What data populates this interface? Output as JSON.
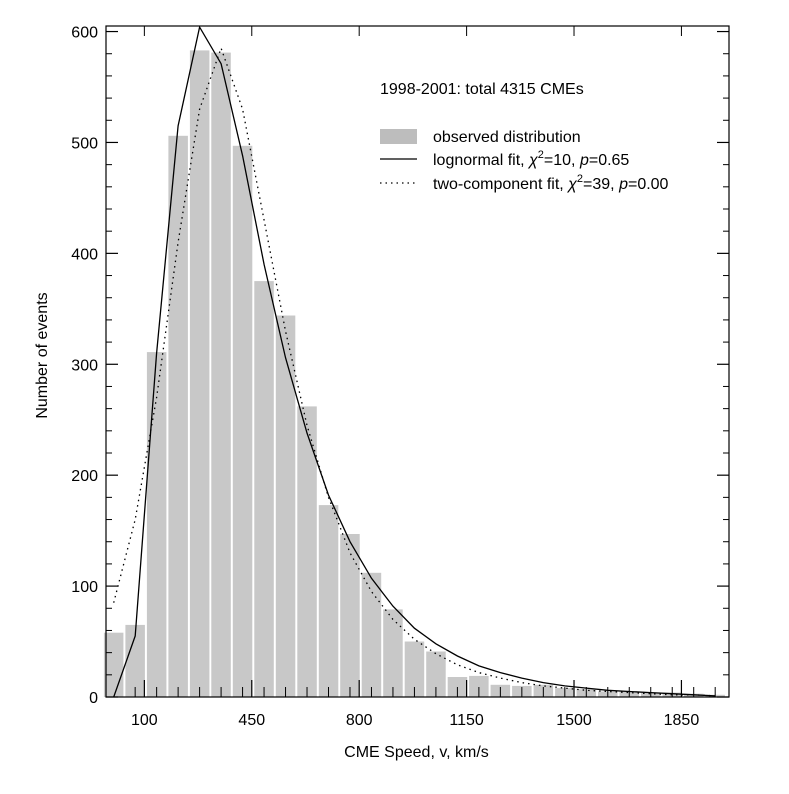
{
  "chart_data": {
    "type": "bar",
    "title": "",
    "xlabel": "CME Speed, v, km/s",
    "ylabel": "Number of events",
    "xlim": [
      -25,
      2005
    ],
    "ylim": [
      0,
      605
    ],
    "x_ticks": [
      100,
      450,
      800,
      1150,
      1500,
      1850
    ],
    "y_ticks": [
      0,
      100,
      200,
      300,
      400,
      500,
      600
    ],
    "grid": false,
    "annotation": "1998-2001: total 4315 CMEs",
    "legend_position": "top-right",
    "legend": [
      {
        "key": "observed",
        "text": "observed distribution"
      },
      {
        "key": "lognormal",
        "pre": "lognormal fit, ",
        "chi_sym": "χ",
        "chi_sup": "2",
        "chi_val": "=10, ",
        "p_sym": "p",
        "p_val": "=0.65"
      },
      {
        "key": "two",
        "pre": "two-component fit, ",
        "chi_sym": "χ",
        "chi_sup": "2",
        "chi_val": "=39, ",
        "p_sym": "p",
        "p_val": "=0.00"
      }
    ],
    "bin_width": 70,
    "bins": {
      "name": "observed distribution",
      "x": [
        0,
        70,
        140,
        210,
        280,
        350,
        420,
        490,
        560,
        630,
        700,
        770,
        840,
        910,
        980,
        1050,
        1120,
        1190,
        1260,
        1330,
        1400,
        1470,
        1540,
        1610,
        1680,
        1750,
        1820,
        1890,
        1960
      ],
      "values": [
        58,
        65,
        311,
        506,
        583,
        581,
        497,
        375,
        344,
        262,
        173,
        147,
        112,
        79,
        50,
        41,
        18,
        19,
        11,
        10,
        11,
        8,
        7,
        5,
        5,
        4,
        4,
        3,
        2
      ]
    },
    "series": [
      {
        "name": "lognormal fit",
        "style": "solid",
        "x": [
          0,
          70,
          140,
          210,
          280,
          350,
          420,
          490,
          560,
          630,
          700,
          770,
          840,
          910,
          980,
          1050,
          1120,
          1190,
          1260,
          1330,
          1400,
          1470,
          1540,
          1610,
          1680,
          1750,
          1820,
          1890,
          1960
        ],
        "values": [
          0,
          55,
          310,
          515,
          604,
          571,
          488,
          390,
          306,
          238,
          182,
          140,
          107,
          82,
          62,
          48,
          37,
          28,
          22,
          17,
          13,
          10,
          8,
          6,
          5,
          4,
          3,
          2,
          1
        ]
      },
      {
        "name": "two-component fit",
        "style": "dotted",
        "x": [
          0,
          70,
          140,
          210,
          280,
          350,
          420,
          490,
          560,
          630,
          700,
          770,
          840,
          910,
          980,
          1050,
          1120,
          1190,
          1260,
          1330,
          1400,
          1470,
          1540,
          1610,
          1680,
          1750,
          1820,
          1890,
          1960
        ],
        "values": [
          85,
          160,
          270,
          410,
          530,
          585,
          530,
          430,
          330,
          245,
          180,
          130,
          95,
          70,
          52,
          39,
          29,
          22,
          17,
          13,
          10,
          8,
          6,
          5,
          4,
          3,
          2,
          2,
          1
        ]
      }
    ],
    "colors": {
      "bar": "#c8c8c8",
      "line": "#000000",
      "background": "#ffffff"
    }
  }
}
